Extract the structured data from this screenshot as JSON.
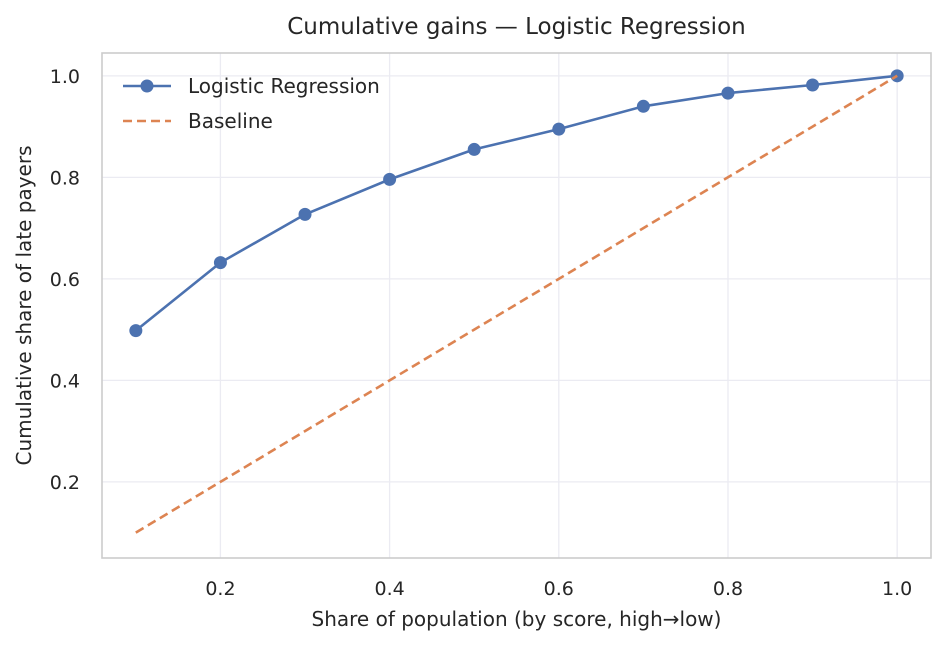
{
  "chart_data": {
    "type": "line",
    "title": "Cumulative gains — Logistic Regression",
    "xlabel": "Share of population (by score, high→low)",
    "ylabel": "Cumulative share of late payers",
    "xlim": [
      0.06,
      1.04
    ],
    "ylim": [
      0.05,
      1.045
    ],
    "xticks": [
      "0.2",
      "0.4",
      "0.6",
      "0.8",
      "1.0"
    ],
    "yticks": [
      "0.2",
      "0.4",
      "0.6",
      "0.8",
      "1.0"
    ],
    "grid": true,
    "legend_position": "top-left",
    "x": [
      0.1,
      0.2,
      0.3,
      0.4,
      0.5,
      0.6,
      0.7,
      0.8,
      0.9,
      1.0
    ],
    "series": [
      {
        "name": "Logistic Regression",
        "values": [
          0.498,
          0.632,
          0.727,
          0.796,
          0.855,
          0.895,
          0.94,
          0.966,
          0.982,
          1.0
        ],
        "color": "#4c72b0",
        "style": "solid-markers"
      },
      {
        "name": "Baseline",
        "values": [
          0.1,
          0.2,
          0.3,
          0.4,
          0.5,
          0.6,
          0.7,
          0.8,
          0.9,
          1.0
        ],
        "color": "#dd8452",
        "style": "dashed"
      }
    ]
  }
}
